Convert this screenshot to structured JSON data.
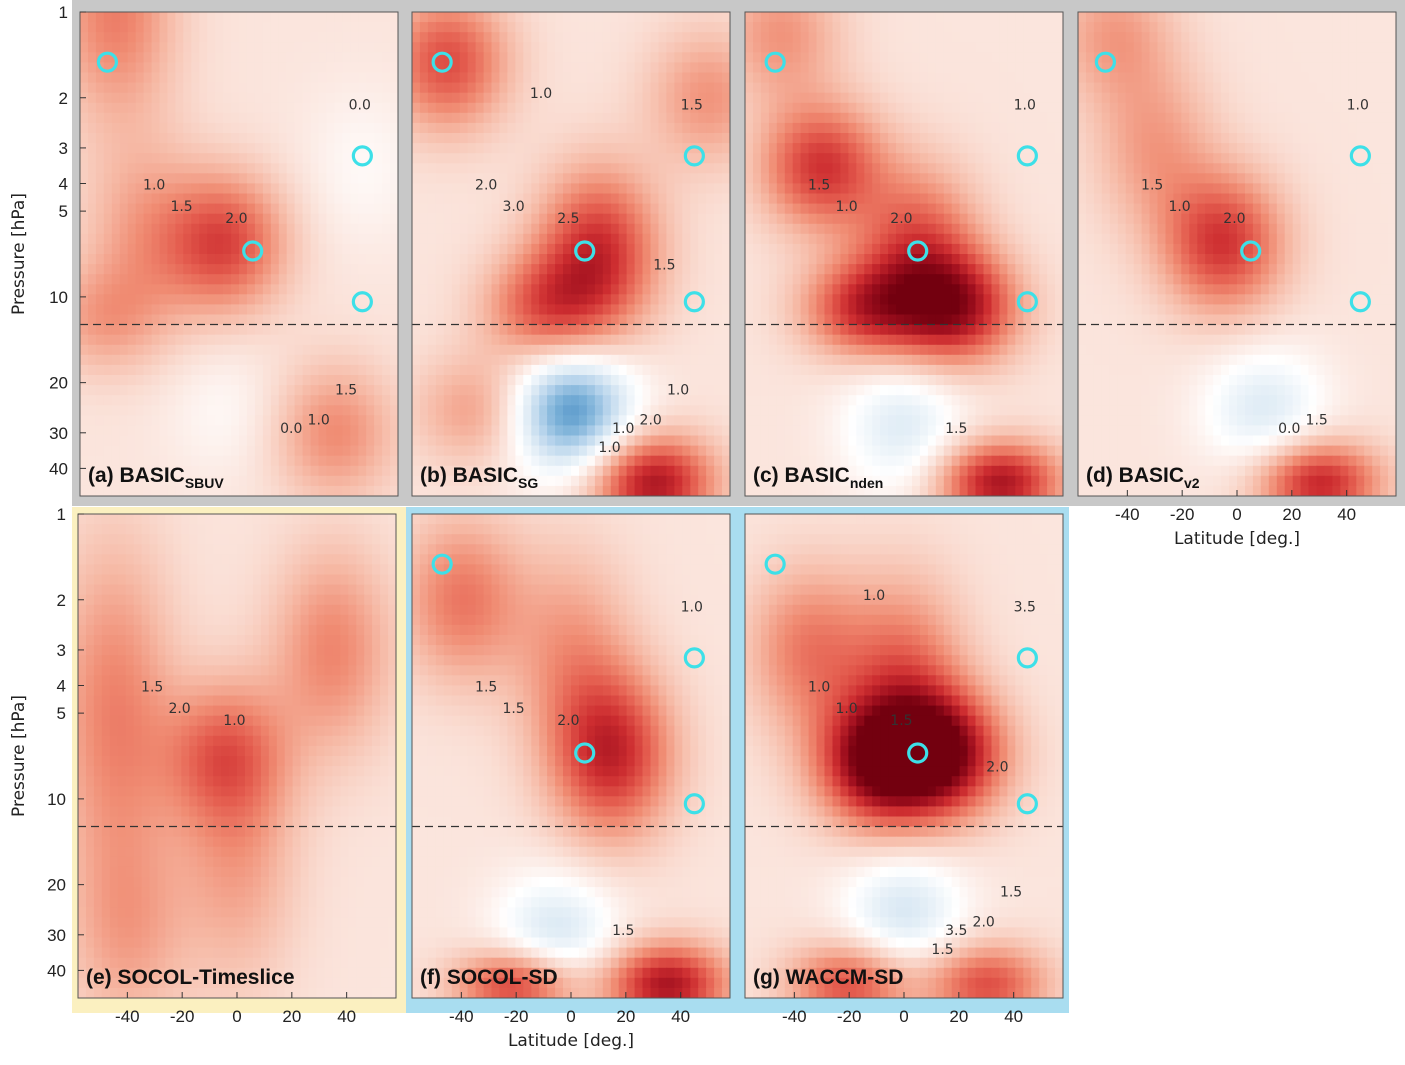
{
  "chart_data": {
    "type": "heatmap",
    "description_axes": {
      "y_label": "Pressure [hPa]",
      "y_scale": "log",
      "y_ticks": [
        1,
        2,
        3,
        4,
        5,
        10,
        20,
        30,
        40
      ],
      "y_range": [
        1,
        50
      ],
      "x_label": "Latitude [deg.]",
      "x_ticks": [
        -40,
        -20,
        0,
        20,
        40
      ],
      "x_range": [
        -58,
        58
      ],
      "dashed_reference_pressure": 12.5
    },
    "colormap": "diverging blue-white-red",
    "panels": [
      {
        "label": "(a) BASIC",
        "label_sub": "SBUV",
        "frame": "gray",
        "contour_labels": [
          "1.0",
          "1.5",
          "2.0",
          "0.0",
          "0.0",
          "1.0",
          "1.5"
        ],
        "markers": [
          [
            -48,
            1.5
          ],
          [
            45,
            3.2
          ],
          [
            5,
            6.9
          ],
          [
            45,
            10.4
          ]
        ]
      },
      {
        "label": "(b) BASIC",
        "label_sub": "SG",
        "frame": "gray",
        "contour_labels": [
          "2.0",
          "3.0",
          "2.5",
          "1.5",
          "1.0",
          "2.0",
          "1.0",
          "1.0",
          "1.5",
          "1.0"
        ],
        "markers": [
          [
            -47,
            1.5
          ],
          [
            45,
            3.2
          ],
          [
            5,
            6.9
          ],
          [
            45,
            10.4
          ]
        ]
      },
      {
        "label": "(c) BASIC",
        "label_sub": "nden",
        "frame": "gray",
        "contour_labels": [
          "1.5",
          "1.0",
          "2.0",
          "1.0",
          "1.5"
        ],
        "markers": [
          [
            -47,
            1.5
          ],
          [
            45,
            3.2
          ],
          [
            5,
            6.9
          ],
          [
            45,
            10.4
          ]
        ]
      },
      {
        "label": "(d) BASIC",
        "label_sub": "v2",
        "frame": "gray",
        "contour_labels": [
          "1.5",
          "1.0",
          "2.0",
          "1.0",
          "0.0",
          "1.5"
        ],
        "markers": [
          [
            -48,
            1.5
          ],
          [
            45,
            3.2
          ],
          [
            5,
            6.9
          ],
          [
            45,
            10.4
          ]
        ]
      },
      {
        "label": "(e) SOCOL-Timeslice",
        "label_sub": "",
        "frame": "yellow",
        "contour_labels": [
          "1.5",
          "2.0",
          "1.0"
        ],
        "markers": []
      },
      {
        "label": "(f) SOCOL-SD",
        "label_sub": "",
        "frame": "blue",
        "contour_labels": [
          "1.5",
          "1.5",
          "2.0",
          "1.0",
          "1.5"
        ],
        "markers": [
          [
            -47,
            1.5
          ],
          [
            45,
            3.2
          ],
          [
            5,
            6.9
          ],
          [
            45,
            10.4
          ]
        ]
      },
      {
        "label": "(g) WACCM-SD",
        "label_sub": "",
        "frame": "blue",
        "contour_labels": [
          "1.0",
          "1.0",
          "1.5",
          "3.5",
          "3.5",
          "2.0",
          "1.5",
          "1.0",
          "2.0",
          "1.5"
        ],
        "markers": [
          [
            -47,
            1.5
          ],
          [
            45,
            3.2
          ],
          [
            5,
            6.9
          ],
          [
            45,
            10.4
          ]
        ]
      }
    ]
  }
}
